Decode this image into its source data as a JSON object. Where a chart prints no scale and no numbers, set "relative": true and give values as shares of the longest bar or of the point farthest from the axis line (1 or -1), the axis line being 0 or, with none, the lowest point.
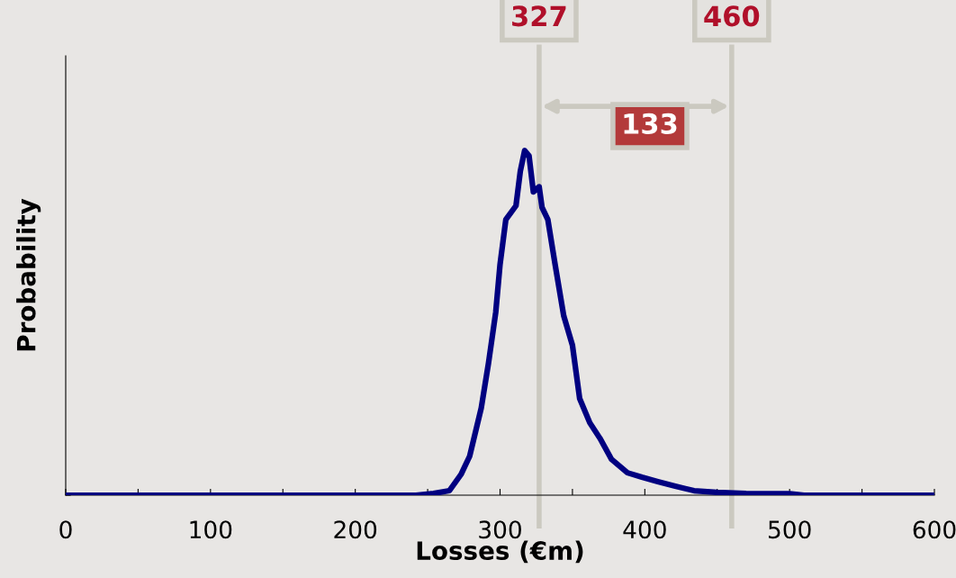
{
  "chart_data": {
    "type": "line",
    "relative": true,
    "xlabel": "Losses (€m)",
    "ylabel": "Probability",
    "x": [
      0,
      100,
      200,
      242,
      254,
      265,
      273,
      279,
      287,
      292,
      297,
      300,
      304,
      311,
      314,
      317,
      320,
      323,
      327,
      329,
      333,
      338,
      344,
      350,
      355,
      362,
      369,
      377,
      388,
      398,
      409,
      421,
      434,
      450,
      470,
      500,
      510,
      550,
      600
    ],
    "series": [
      {
        "color": "#000080",
        "values": [
          0,
          0,
          0,
          0,
          0.005,
          0.013,
          0.06,
          0.113,
          0.253,
          0.383,
          0.53,
          0.67,
          0.8,
          0.84,
          0.94,
          1.0,
          0.985,
          0.88,
          0.895,
          0.835,
          0.8,
          0.67,
          0.52,
          0.435,
          0.28,
          0.21,
          0.165,
          0.104,
          0.065,
          0.052,
          0.039,
          0.026,
          0.013,
          0.008,
          0.005,
          0.004,
          0,
          0,
          0
        ]
      }
    ],
    "xlim": [
      0,
      600
    ],
    "xticks": [
      0,
      {
        "value": 50,
        "label": null
      },
      100,
      {
        "value": 150,
        "label": null
      },
      200,
      {
        "value": 250,
        "label": null
      },
      300,
      {
        "value": 350,
        "label": null
      },
      400,
      {
        "value": 450,
        "label": null
      },
      500,
      {
        "value": 550,
        "label": null
      },
      600
    ],
    "ref_lines": [
      {
        "axis": "x",
        "value": 327,
        "label": "327",
        "color": "#cbc9c0"
      },
      {
        "axis": "x",
        "value": 460,
        "label": "460",
        "color": "#cbc9c0"
      }
    ],
    "annotations": [
      "133"
    ],
    "grid": false,
    "legend": false
  }
}
